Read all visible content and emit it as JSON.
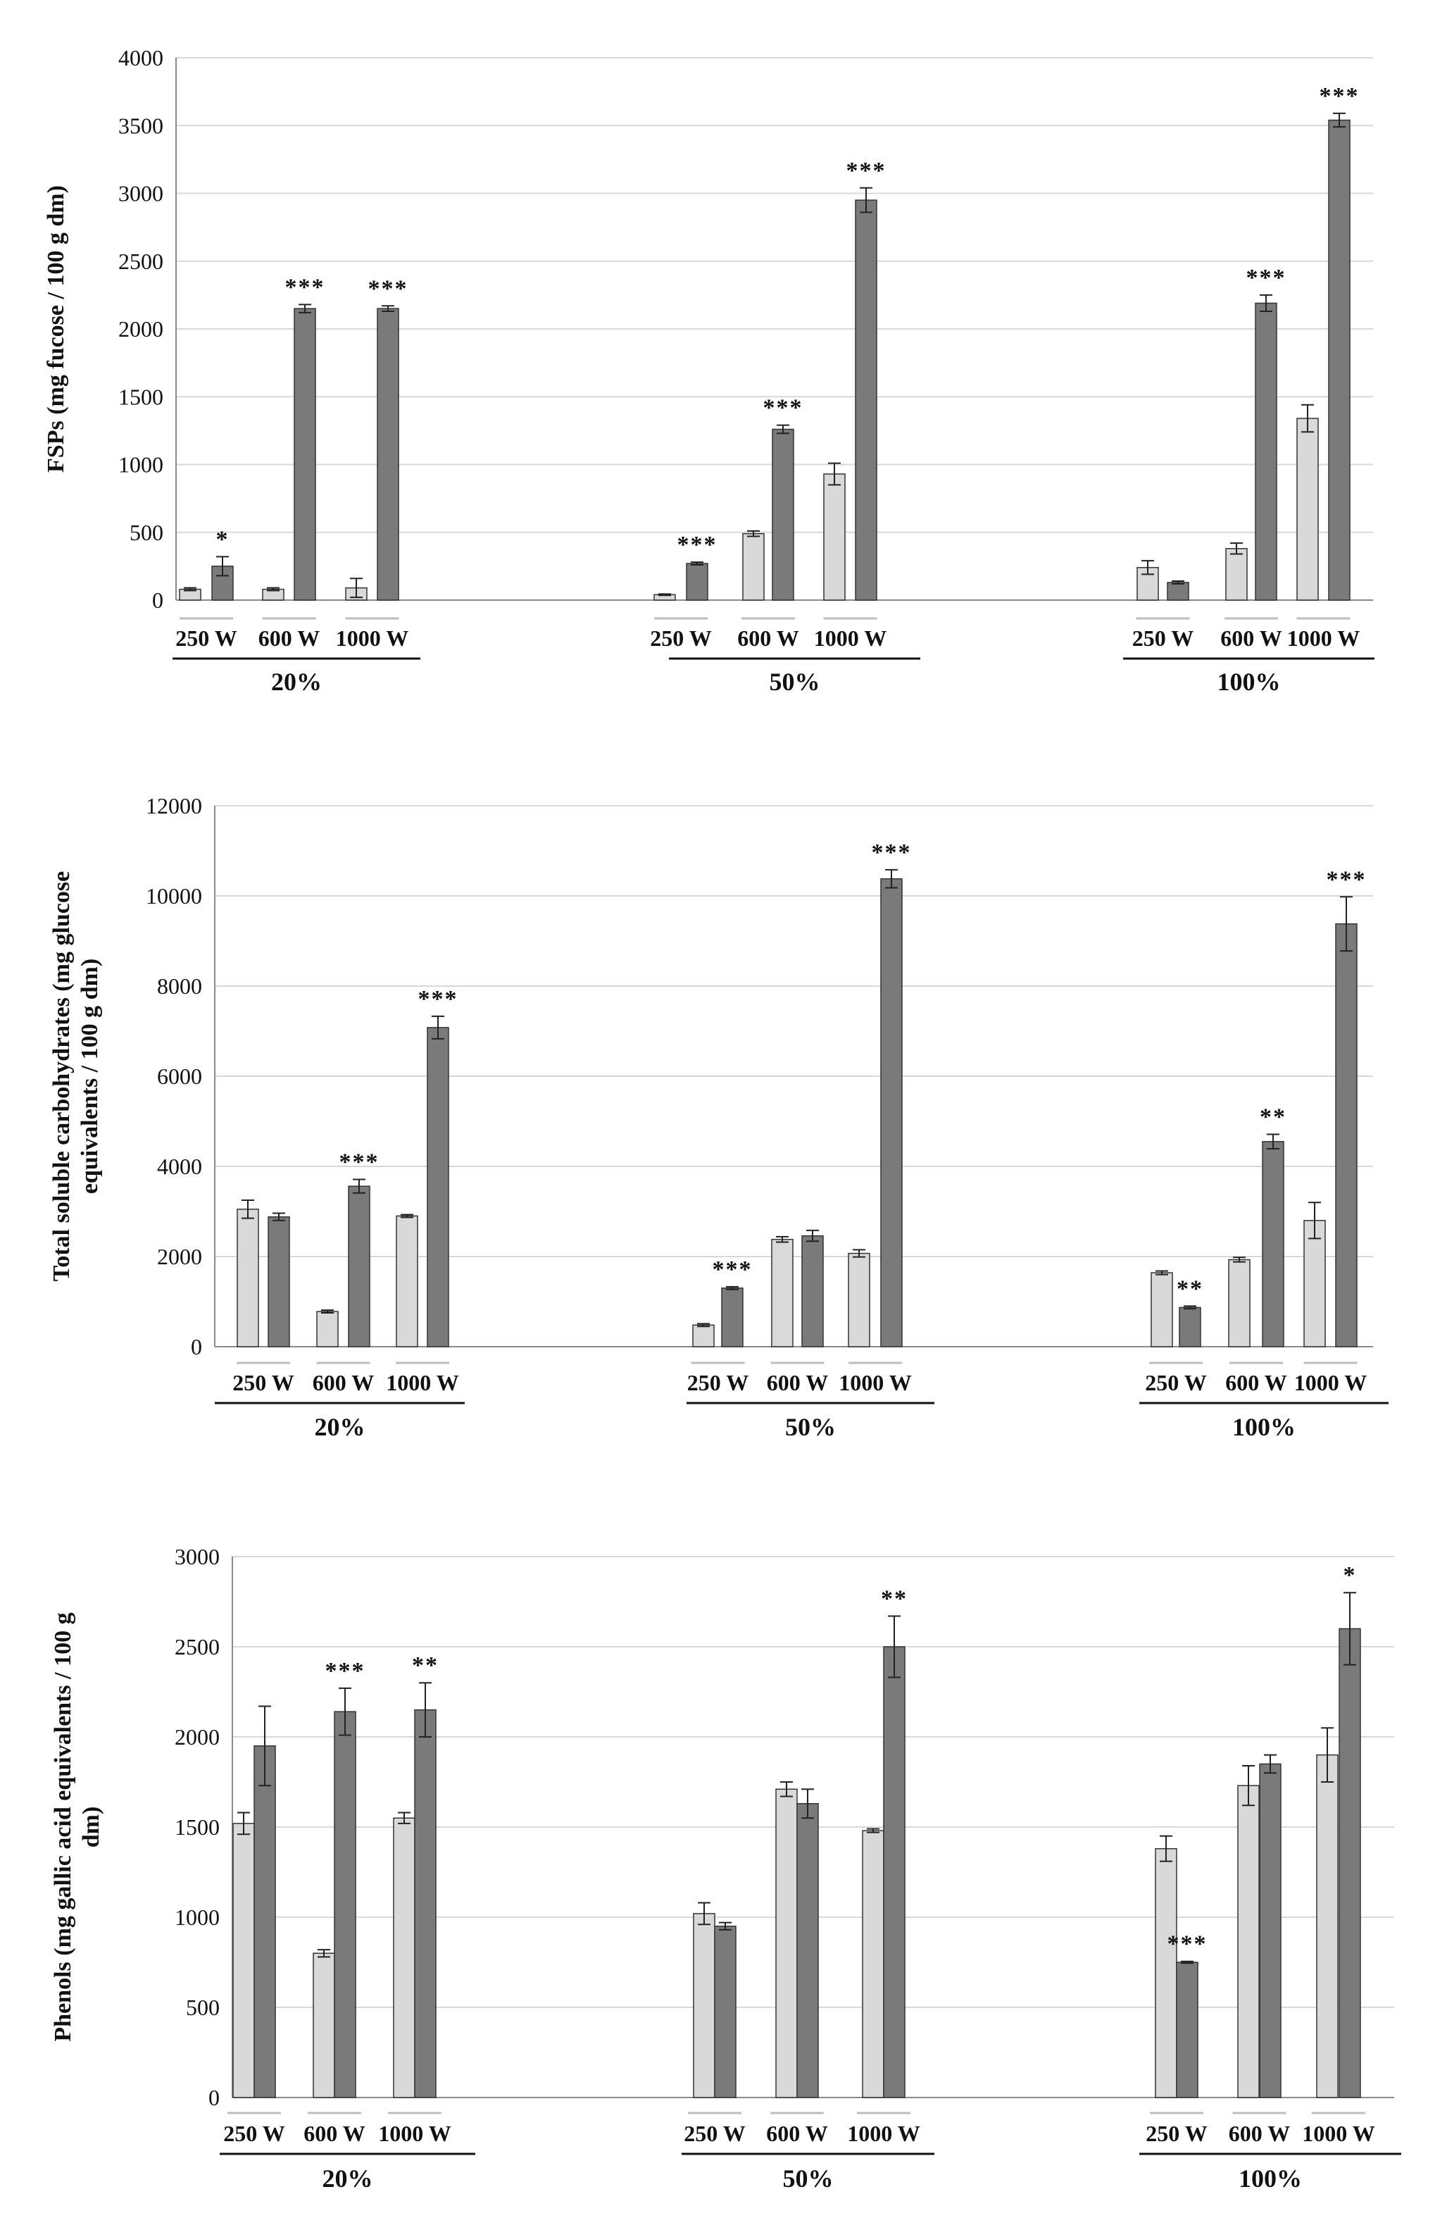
{
  "chart_data": [
    {
      "type": "bar",
      "ylabel": "FSPs (mg fucose / 100 g dm)",
      "ylim": [
        0,
        4000
      ],
      "yticks": [
        0,
        500,
        1000,
        1500,
        2000,
        2500,
        3000,
        3500,
        4000
      ],
      "ytick_labels": [
        "0",
        "500",
        "1000",
        "1500",
        "2000",
        "2500",
        "3000",
        "3500",
        "4000"
      ],
      "grid": true,
      "groups": [
        {
          "label": "20%",
          "conditions": [
            {
              "label": "250 W",
              "light": 80,
              "light_err": 10,
              "dark": 250,
              "dark_err": 70,
              "sig": "*"
            },
            {
              "label": "600 W",
              "light": 80,
              "light_err": 10,
              "dark": 2150,
              "dark_err": 30,
              "sig": "***"
            },
            {
              "label": "1000 W",
              "light": 90,
              "light_err": 70,
              "dark": 2150,
              "dark_err": 20,
              "sig": "***"
            }
          ]
        },
        {
          "label": "50%",
          "conditions": [
            {
              "label": "250 W",
              "light": 40,
              "light_err": 5,
              "dark": 270,
              "dark_err": 10,
              "sig": "***"
            },
            {
              "label": "600 W",
              "light": 490,
              "light_err": 20,
              "dark": 1260,
              "dark_err": 30,
              "sig": "***"
            },
            {
              "label": "1000 W",
              "light": 930,
              "light_err": 80,
              "dark": 2950,
              "dark_err": 90,
              "sig": "***"
            }
          ]
        },
        {
          "label": "100%",
          "conditions": [
            {
              "label": "250 W",
              "light": 240,
              "light_err": 50,
              "dark": 130,
              "dark_err": 10,
              "sig": ""
            },
            {
              "label": "600 W",
              "light": 380,
              "light_err": 40,
              "dark": 2190,
              "dark_err": 60,
              "sig": "***"
            },
            {
              "label": "1000 W",
              "light": 1340,
              "light_err": 100,
              "dark": 3540,
              "dark_err": 50,
              "sig": "***"
            }
          ]
        }
      ]
    },
    {
      "type": "bar",
      "ylabel_lines": [
        "Total soluble carbohydrates (mg glucose",
        "equivalents / 100 g dm)"
      ],
      "ylim": [
        0,
        12000
      ],
      "yticks": [
        0,
        2000,
        4000,
        6000,
        8000,
        10000,
        12000
      ],
      "ytick_labels": [
        "0",
        "2000",
        "4000",
        "6000",
        "8000",
        "10000",
        "12000"
      ],
      "grid": true,
      "groups": [
        {
          "label": "20%",
          "conditions": [
            {
              "label": "250 W",
              "light": 3050,
              "light_err": 200,
              "dark": 2880,
              "dark_err": 80,
              "sig": ""
            },
            {
              "label": "600 W",
              "light": 780,
              "light_err": 30,
              "dark": 3560,
              "dark_err": 150,
              "sig": "***"
            },
            {
              "label": "1000 W",
              "light": 2900,
              "light_err": 30,
              "dark": 7080,
              "dark_err": 250,
              "sig": "***"
            }
          ]
        },
        {
          "label": "50%",
          "conditions": [
            {
              "label": "250 W",
              "light": 480,
              "light_err": 30,
              "dark": 1300,
              "dark_err": 30,
              "sig": "***"
            },
            {
              "label": "600 W",
              "light": 2380,
              "light_err": 60,
              "dark": 2460,
              "dark_err": 120,
              "sig": ""
            },
            {
              "label": "1000 W",
              "light": 2070,
              "light_err": 80,
              "dark": 10380,
              "dark_err": 200,
              "sig": "***"
            }
          ]
        },
        {
          "label": "100%",
          "conditions": [
            {
              "label": "250 W",
              "light": 1640,
              "light_err": 40,
              "dark": 870,
              "dark_err": 30,
              "sig": "**"
            },
            {
              "label": "600 W",
              "light": 1930,
              "light_err": 50,
              "dark": 4550,
              "dark_err": 160,
              "sig": "**"
            },
            {
              "label": "1000 W",
              "light": 2800,
              "light_err": 400,
              "dark": 9380,
              "dark_err": 600,
              "sig": "***"
            }
          ]
        }
      ]
    },
    {
      "type": "bar",
      "ylabel_lines": [
        "Phenols (mg gallic acid equivalents / 100 g",
        "dm)"
      ],
      "ylim": [
        0,
        3000
      ],
      "yticks": [
        0,
        500,
        1000,
        1500,
        2000,
        2500,
        3000
      ],
      "ytick_labels": [
        "0",
        "500",
        "1000",
        "1500",
        "2000",
        "2500",
        "3000"
      ],
      "grid": true,
      "groups": [
        {
          "label": "20%",
          "conditions": [
            {
              "label": "250 W",
              "light": 1520,
              "light_err": 60,
              "dark": 1950,
              "dark_err": 220,
              "sig": ""
            },
            {
              "label": "600 W",
              "light": 800,
              "light_err": 20,
              "dark": 2140,
              "dark_err": 130,
              "sig": "***"
            },
            {
              "label": "1000 W",
              "light": 1550,
              "light_err": 30,
              "dark": 2150,
              "dark_err": 150,
              "sig": "**"
            }
          ]
        },
        {
          "label": "50%",
          "conditions": [
            {
              "label": "250 W",
              "light": 1020,
              "light_err": 60,
              "dark": 950,
              "dark_err": 20,
              "sig": ""
            },
            {
              "label": "600 W",
              "light": 1710,
              "light_err": 40,
              "dark": 1630,
              "dark_err": 80,
              "sig": ""
            },
            {
              "label": "1000 W",
              "light": 1480,
              "light_err": 10,
              "dark": 2500,
              "dark_err": 170,
              "sig": "**"
            }
          ]
        },
        {
          "label": "100%",
          "conditions": [
            {
              "label": "250 W",
              "light": 1380,
              "light_err": 70,
              "dark": 750,
              "dark_err": 5,
              "sig": "***"
            },
            {
              "label": "600 W",
              "light": 1730,
              "light_err": 110,
              "dark": 1850,
              "dark_err": 50,
              "sig": ""
            },
            {
              "label": "1000 W",
              "light": 1900,
              "light_err": 150,
              "dark": 2600,
              "dark_err": 200,
              "sig": "*"
            }
          ]
        }
      ]
    }
  ],
  "colors": {
    "light_bar": "#d9d9d9",
    "dark_bar": "#7a7a7a",
    "bar_stroke": "#333333",
    "grid": "#d8d8d8",
    "axis": "#8a8a8a",
    "text": "#111111"
  }
}
